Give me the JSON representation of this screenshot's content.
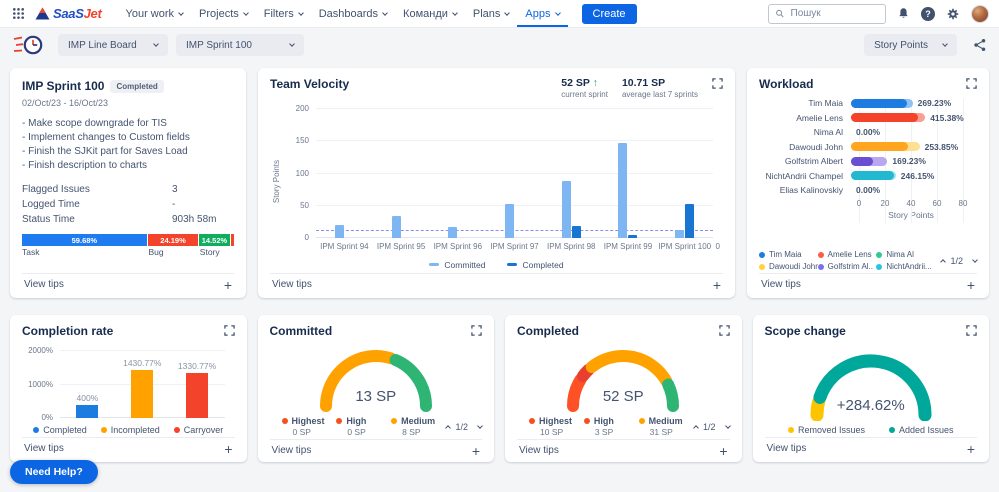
{
  "app": {
    "nav": {
      "logo_text_1": "SaaS",
      "logo_text_2": "Jet",
      "menu": [
        "Your work",
        "Projects",
        "Filters",
        "Dashboards",
        "Команди",
        "Plans",
        "Apps"
      ],
      "active_item": "Apps",
      "create_label": "Create",
      "search_placeholder": "Пошук"
    },
    "toolbar": {
      "board": "IMP Line Board",
      "sprint": "IMP Sprint 100",
      "unit": "Story Points"
    },
    "labels": {
      "view_tips": "View tips",
      "need_help": "Need Help?"
    }
  },
  "sprint_card": {
    "title": "IMP Sprint 100",
    "badge": "Completed",
    "dates": "02/Oct/23 - 16/Oct/23",
    "goals": [
      "- Make scope downgrade for TIS",
      "- Implement changes to Custom fields",
      "- Finish the SJKit part for Saves Load",
      "- Finish description to charts"
    ],
    "stats": [
      {
        "label": "Flagged Issues",
        "value": "3"
      },
      {
        "label": "Logged Time",
        "value": "-"
      },
      {
        "label": "Status Time",
        "value": "903h 58m"
      }
    ],
    "distribution": [
      {
        "name": "Task",
        "pct": 59.68,
        "label": "59.68%",
        "color": "#1f7cf0"
      },
      {
        "name": "Bug",
        "pct": 24.19,
        "label": "24.19%",
        "color": "#f4432b"
      },
      {
        "name": "Story",
        "pct": 14.52,
        "label": "14.52%",
        "color": "#0fae5f"
      },
      {
        "name": "",
        "pct": 1.61,
        "label": "",
        "color": "#f4432b"
      }
    ]
  },
  "team_velocity": {
    "title": "Team Velocity",
    "stats": {
      "current_value": "52 SP",
      "current_caption": "current sprint",
      "average_value": "10.71 SP",
      "average_caption": "average last 7 sprints"
    },
    "chart": {
      "type": "bar",
      "ylabel": "Story Points",
      "ylim": [
        0,
        200
      ],
      "yticks": [
        0,
        50,
        100,
        150,
        200
      ],
      "categories": [
        "IPM Sprint 94",
        "IPM Sprint 95",
        "IPM Sprint 96",
        "IPM Sprint 97",
        "IPM Sprint 98",
        "IPM Sprint 99",
        "IPM Sprint 100"
      ],
      "trailing_xlabel": "0",
      "average_line": 10.71,
      "series": [
        {
          "name": "Committed",
          "color": "#7db6f2",
          "values": [
            20,
            34,
            17,
            52,
            88,
            148,
            13
          ]
        },
        {
          "name": "Completed",
          "color": "#1876d2",
          "values": [
            0,
            0,
            0,
            0,
            18,
            5,
            52
          ]
        }
      ]
    }
  },
  "workload": {
    "title": "Workload",
    "chart": {
      "type": "bar-horizontal",
      "xlabel": "Story Points",
      "xlim": [
        0,
        80
      ],
      "xticks": [
        0,
        20,
        40,
        60,
        80
      ],
      "rows": [
        {
          "name": "Tim Maia",
          "value": 40,
          "extra": 4,
          "color": "#1d7cdf",
          "extra_color": "#8ec1f7",
          "label": "269.23%"
        },
        {
          "name": "Amelie Lens",
          "value": 48,
          "extra": 5,
          "color": "#f4422b",
          "extra_color": "#fa9d92",
          "label": "415.38%"
        },
        {
          "name": "Nima Al",
          "value": 0,
          "extra": 0,
          "color": "#34c98e",
          "extra_color": "#a8e6cf",
          "label": "0.00%"
        },
        {
          "name": "Dawoudi John",
          "value": 41,
          "extra": 8,
          "color": "#ffa51f",
          "extra_color": "#ffe092",
          "label": "253.85%"
        },
        {
          "name": "Golfstrim Albert",
          "value": 16,
          "extra": 10,
          "color": "#6a4fd0",
          "extra_color": "#b9a7ef",
          "label": "169.23%"
        },
        {
          "name": "NichtAndrii Champel",
          "value": 31,
          "extra": 1,
          "color": "#22b8cf",
          "extra_color": "#9ae3ef",
          "label": "246.15%"
        },
        {
          "name": "Elias Kalinovskiy",
          "value": 0,
          "extra": 0,
          "color": "#9aa4b2",
          "extra_color": "#9aa4b2",
          "label": "0.00%"
        }
      ],
      "legend": [
        {
          "name": "Tim Maia",
          "color": "#1d7cdf"
        },
        {
          "name": "Amelie Lens",
          "color": "#ff5c45"
        },
        {
          "name": "Nima Al",
          "color": "#34c98e"
        },
        {
          "name": "Dawoudi John",
          "color": "#ffd23e"
        },
        {
          "name": "Golfstrim Al..",
          "color": "#7a6ff0"
        },
        {
          "name": "NichtAndrii...",
          "color": "#27c4e8"
        }
      ],
      "pagination": "1/2"
    }
  },
  "completion_rate": {
    "title": "Completion rate",
    "chart": {
      "type": "bar",
      "ylim": [
        0,
        2000
      ],
      "yticks": [
        0,
        1000,
        2000
      ],
      "ytick_labels": [
        "0%",
        "1000%",
        "2000%"
      ],
      "bars": [
        {
          "name": "Completed",
          "value": 400,
          "label": "400%",
          "color": "#1d7cdf"
        },
        {
          "name": "Incompleted",
          "value": 1430.77,
          "label": "1430.77%",
          "color": "#ffa200"
        },
        {
          "name": "Carryover",
          "value": 1330.77,
          "label": "1330.77%",
          "color": "#f4432b"
        }
      ]
    }
  },
  "committed": {
    "title": "Committed",
    "center": "13 SP",
    "gauge": {
      "type": "gauge",
      "segments": [
        {
          "value": 8,
          "color": "#ffa200"
        },
        {
          "value": 5,
          "color": "#2fb573"
        }
      ]
    },
    "legend": [
      {
        "name": "Highest",
        "value": "0 SP",
        "color": "#f4511e"
      },
      {
        "name": "High",
        "value": "0 SP",
        "color": "#f4511e"
      },
      {
        "name": "Medium",
        "value": "8 SP",
        "color": "#ffa200"
      }
    ],
    "pagination": "1/2"
  },
  "completed": {
    "title": "Completed",
    "center": "52 SP",
    "gauge": {
      "type": "gauge",
      "segments": [
        {
          "value": 10,
          "color": "#ff5126"
        },
        {
          "value": 3,
          "color": "#e8402e"
        },
        {
          "value": 31,
          "color": "#ffa200"
        },
        {
          "value": 8,
          "color": "#2fb573"
        }
      ]
    },
    "legend": [
      {
        "name": "Highest",
        "value": "10 SP",
        "color": "#f4511e"
      },
      {
        "name": "High",
        "value": "3 SP",
        "color": "#f4511e"
      },
      {
        "name": "Medium",
        "value": "31 SP",
        "color": "#ffa200"
      }
    ],
    "pagination": "1/2"
  },
  "scope_change": {
    "title": "Scope change",
    "center": "+284.62%",
    "gauge": {
      "type": "gauge",
      "segments": [
        {
          "value": 8,
          "color": "#ffc400"
        },
        {
          "value": 92,
          "color": "#00a79b"
        }
      ]
    },
    "legend": [
      {
        "name": "Removed Issues",
        "color": "#ffc400"
      },
      {
        "name": "Added Issues",
        "color": "#00a79b"
      }
    ]
  }
}
